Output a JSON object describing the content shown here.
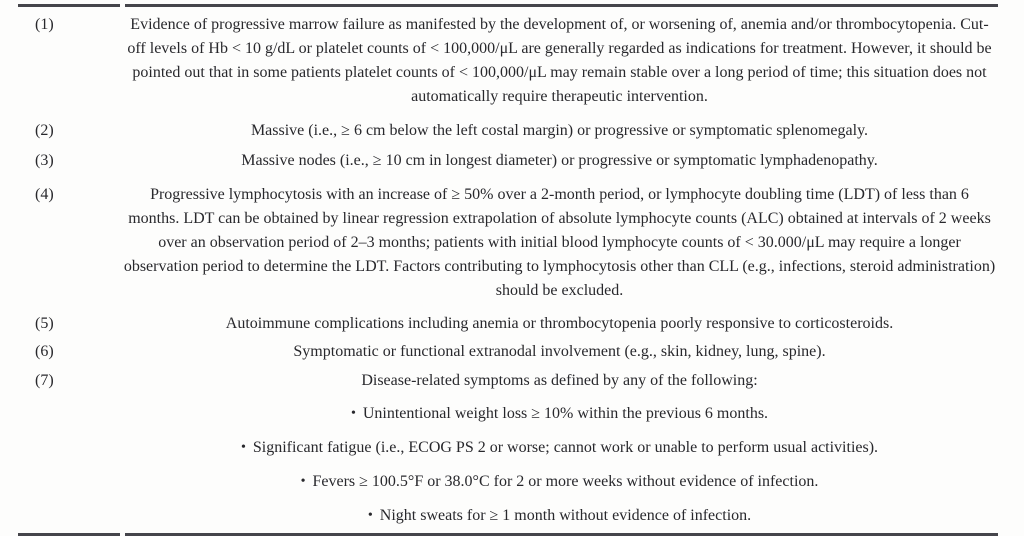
{
  "colors": {
    "background": "#fdfdfc",
    "text": "#28282c",
    "rule": "#45454b"
  },
  "table": {
    "bullet_char": "•",
    "rows": [
      {
        "num": "(1)",
        "text": "Evidence of progressive marrow failure as manifested by the development of, or worsening of, anemia and/or thrombocytopenia. Cut-off levels of Hb < 10 g/dL or platelet counts of < 100,000/μL are generally regarded as indications for treatment. However, it should be pointed out that in some patients platelet counts of < 100,000/μL may remain stable over a long period of time; this situation does not automatically require therapeutic intervention."
      },
      {
        "num": "(2)",
        "text": "Massive (i.e., ≥ 6 cm below the left costal margin) or progressive or symptomatic splenomegaly."
      },
      {
        "num": "(3)",
        "text": "Massive nodes (i.e., ≥ 10 cm in longest diameter) or progressive or symptomatic lymphadenopathy."
      },
      {
        "num": "(4)",
        "text": "Progressive lymphocytosis with an increase of ≥ 50% over a 2-month period, or lymphocyte doubling time (LDT) of less than 6 months. LDT can be obtained by linear regression extrapolation of absolute lymphocyte counts (ALC) obtained at intervals of 2 weeks over an observation period of 2–3 months; patients with initial blood lymphocyte counts of < 30.000/μL may require a longer observation period to determine the LDT. Factors contributing to lymphocytosis other than CLL (e.g., infections, steroid administration) should be excluded."
      },
      {
        "num": "(5)",
        "text": "Autoimmune complications including anemia or thrombocytopenia poorly responsive to corticosteroids."
      },
      {
        "num": "(6)",
        "text": "Symptomatic or functional extranodal involvement (e.g., skin, kidney, lung, spine)."
      },
      {
        "num": "(7)",
        "text": "Disease-related symptoms as defined by any of the following:",
        "bullets": [
          "Unintentional weight loss ≥ 10% within the previous 6 months.",
          "Significant fatigue (i.e., ECOG PS 2 or worse; cannot work or unable to perform usual activities).",
          "Fevers ≥ 100.5°F or 38.0°C for 2 or more weeks without evidence of infection.",
          "Night sweats for ≥ 1 month without evidence of infection."
        ]
      }
    ]
  }
}
